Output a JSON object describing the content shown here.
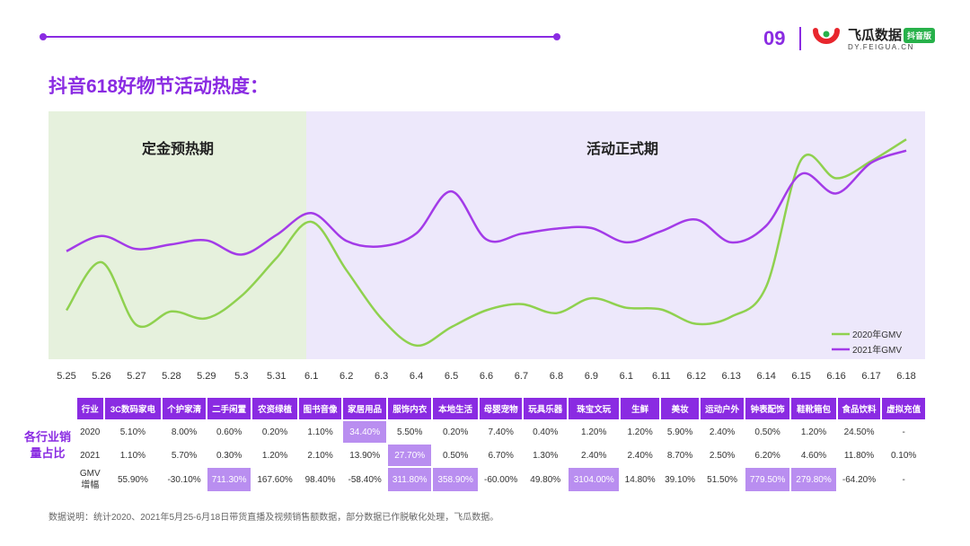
{
  "header": {
    "page_number": "09",
    "logo_title": "飞瓜数据",
    "logo_badge": "抖音版",
    "logo_subtitle": "DY.FEIGUA.CN"
  },
  "heading": "抖音618好物节活动热度：",
  "colors": {
    "accent": "#8a2be2",
    "series_2020": "#8fd14f",
    "series_2021": "#a33be8",
    "preheat_bg": "#e6f1dd",
    "main_bg": "#ede8fb"
  },
  "chart_data": {
    "type": "line",
    "x": [
      "5.25",
      "5.26",
      "5.27",
      "5.28",
      "5.29",
      "5.3",
      "5.31",
      "6.1",
      "6.2",
      "6.3",
      "6.4",
      "6.5",
      "6.6",
      "6.7",
      "6.8",
      "6.9",
      "6.1",
      "6.11",
      "6.12",
      "6.13",
      "6.14",
      "6.15",
      "6.16",
      "6.17",
      "6.18"
    ],
    "series": [
      {
        "name": "2020年GMV",
        "values": [
          54.5,
          108.0,
          38.2,
          53.2,
          45.6,
          70.4,
          112.6,
          153.0,
          99.2,
          45.4,
          15.2,
          35.8,
          54.5,
          61.4,
          51.3,
          67.9,
          57.3,
          55.4,
          39.4,
          47.4,
          81.0,
          222.3,
          201.5,
          220.6,
          244.8
        ]
      },
      {
        "name": "2021年GMV",
        "values": [
          120.3,
          137.3,
          122.7,
          127.9,
          132.3,
          116.5,
          138.3,
          162.7,
          131.8,
          125.8,
          140.1,
          186.9,
          133.4,
          139.7,
          145.4,
          146.1,
          130.1,
          142.6,
          155.5,
          130.1,
          148.7,
          206.3,
          184.6,
          218.8,
          232.3
        ]
      }
    ],
    "regions": [
      {
        "label": "定金预热期"
      },
      {
        "label": "活动正式期"
      }
    ]
  },
  "table": {
    "side_label": "各行业销量占比",
    "headers": [
      "行业",
      "3C数码家电",
      "个护家清",
      "二手闲置",
      "农资绿植",
      "图书音像",
      "家居用品",
      "服饰内衣",
      "本地生活",
      "母婴宠物",
      "玩具乐器",
      "珠宝文玩",
      "生鲜",
      "美妆",
      "运动户外",
      "钟表配饰",
      "鞋靴箱包",
      "食品饮料",
      "虚拟充值"
    ],
    "rows": [
      {
        "label": "2020",
        "cells": [
          "5.10%",
          "8.00%",
          "0.60%",
          "0.20%",
          "1.10%",
          "34.40%",
          "5.50%",
          "0.20%",
          "7.40%",
          "0.40%",
          "1.20%",
          "1.20%",
          "5.90%",
          "2.40%",
          "0.50%",
          "1.20%",
          "24.50%",
          "-"
        ],
        "highlight": [
          5
        ]
      },
      {
        "label": "2021",
        "cells": [
          "1.10%",
          "5.70%",
          "0.30%",
          "1.20%",
          "2.10%",
          "13.90%",
          "27.70%",
          "0.50%",
          "6.70%",
          "1.30%",
          "2.40%",
          "2.40%",
          "8.70%",
          "2.50%",
          "6.20%",
          "4.60%",
          "11.80%",
          "0.10%"
        ],
        "highlight": [
          6
        ]
      },
      {
        "label": "GMV\n增幅",
        "cells": [
          "55.90%",
          "-30.10%",
          "711.30%",
          "167.60%",
          "98.40%",
          "-58.40%",
          "311.80%",
          "358.90%",
          "-60.00%",
          "49.80%",
          "3104.00%",
          "14.80%",
          "39.10%",
          "51.50%",
          "779.50%",
          "279.80%",
          "-64.20%",
          "-"
        ],
        "highlight": [
          2,
          6,
          7,
          10,
          14,
          15
        ]
      }
    ]
  },
  "footnote": "数据说明：统计2020、2021年5月25-6月18日带货直播及视频销售额数据，部分数据已作脱敏化处理，飞瓜数据。"
}
